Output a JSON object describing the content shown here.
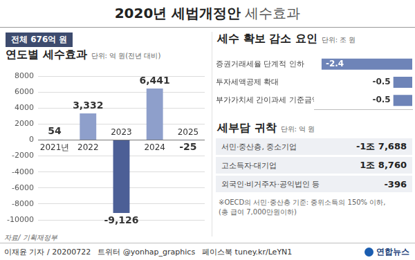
{
  "title": {
    "main": "2020년 세법개정안",
    "sub": "세수효과"
  },
  "summary": "전체 676억 원",
  "chart_data": [
    {
      "type": "bar",
      "title": "연도별 세수효과",
      "subtitle": "단위: 억 원(전년 대비)",
      "categories": [
        "2021년",
        "2022",
        "2023",
        "2024",
        "2025"
      ],
      "values": [
        54,
        3332,
        -9126,
        6441,
        -25
      ],
      "value_labels": [
        "54",
        "3,332",
        "-9,126",
        "6,441",
        "-25"
      ],
      "colors": [
        "#8e9fcb",
        "#8e9fcb",
        "#4c5f96",
        "#8e9fcb",
        "#4c5f96"
      ],
      "data_labels": true,
      "grid": true,
      "ylim": [
        -10000,
        8000
      ],
      "yticks": [
        -10000,
        -8000,
        -6000,
        -4000,
        -2000,
        0,
        2000,
        4000,
        6000,
        8000
      ]
    },
    {
      "type": "bar",
      "title": "세수 확보 감소 요인",
      "subtitle": "단위: 조 원",
      "orientation": "horizontal",
      "categories": [
        "증권거래세율 단계적 인하",
        "투자세액공제 확대",
        "부가가치세 간이과세 기준금액 상향"
      ],
      "values": [
        -2.4,
        -0.5,
        -0.5
      ],
      "color": "#6e84b8",
      "data_labels": true,
      "grid": false,
      "tick_labels": "y",
      "xlim": [
        -2.6,
        0
      ]
    }
  ],
  "burden": {
    "title": "세부담 귀착",
    "subtitle": "단위: 억 원",
    "rows": [
      [
        "서민·중산층, 중소기업",
        "-1조 7,688"
      ],
      [
        "고소득자·대기업",
        "1조 8,760"
      ],
      [
        "외국인·비거주자·공익법인 등",
        "-396"
      ]
    ],
    "note": [
      "※OECD의 서민·중산층 기준: 중위소득의 150% 이하,",
      "(총 급여 7,000만원이하)"
    ]
  },
  "source": "자료/ 기획재정부",
  "footer": {
    "credits": [
      "이재윤 기자 / 20200722",
      "트위터 @yonhap_graphics",
      "페이스북 tuney.kr/LeYN1"
    ],
    "logo": "연합뉴스"
  }
}
